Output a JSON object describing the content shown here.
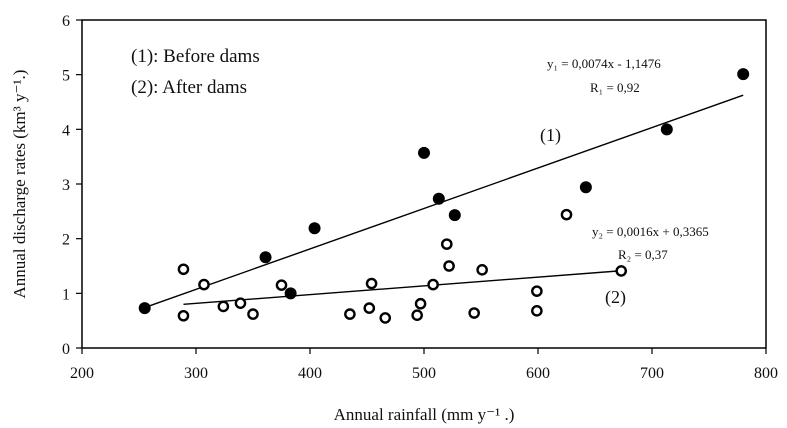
{
  "chart_data": {
    "type": "scatter",
    "xlabel": "Annual rainfall (mm y⁻¹ .)",
    "ylabel": "Annual discharge rates (km³ y⁻¹.)",
    "xlim": [
      200,
      800
    ],
    "ylim": [
      0,
      6
    ],
    "xticks": [
      200,
      300,
      400,
      500,
      600,
      700,
      800
    ],
    "yticks": [
      0,
      1,
      2,
      3,
      4,
      5,
      6
    ],
    "grid": false,
    "legend": {
      "position": "top-left",
      "entries": [
        "(1): Before dams",
        "(2): After dams"
      ]
    },
    "series": [
      {
        "name": "(1): Before dams",
        "marker": "filled-circle",
        "points": [
          [
            255,
            0.73
          ],
          [
            361,
            1.66
          ],
          [
            383,
            1.0
          ],
          [
            404,
            2.19
          ],
          [
            500,
            3.57
          ],
          [
            513,
            2.73
          ],
          [
            527,
            2.43
          ],
          [
            642,
            2.94
          ],
          [
            713,
            4.0
          ],
          [
            780,
            5.01
          ]
        ],
        "fit": {
          "x_range": [
            255,
            780
          ],
          "slope": 0.0074,
          "intercept": -1.1476,
          "equation": "y₁ = 0,0074x - 1,1476",
          "r_label": "R₁ = 0,92",
          "curve_label": "(1)"
        }
      },
      {
        "name": "(2): After dams",
        "marker": "open-circle",
        "points": [
          [
            289,
            1.44
          ],
          [
            289,
            0.59
          ],
          [
            307,
            1.16
          ],
          [
            324,
            0.76
          ],
          [
            339,
            0.82
          ],
          [
            350,
            0.62
          ],
          [
            375,
            1.15
          ],
          [
            435,
            0.62
          ],
          [
            452,
            0.73
          ],
          [
            454,
            1.18
          ],
          [
            466,
            0.55
          ],
          [
            494,
            0.6
          ],
          [
            497,
            0.81
          ],
          [
            508,
            1.16
          ],
          [
            520,
            1.9
          ],
          [
            522,
            1.5
          ],
          [
            544,
            0.64
          ],
          [
            551,
            1.43
          ],
          [
            599,
            1.04
          ],
          [
            599,
            0.68
          ],
          [
            625,
            2.44
          ],
          [
            673,
            1.41
          ]
        ],
        "fit": {
          "x_range": [
            289,
            673
          ],
          "slope": 0.0016,
          "intercept": 0.3365,
          "equation": "y₂ = 0,0016x + 0,3365",
          "r_label": "R₂ = 0,37",
          "curve_label": "(2)"
        }
      }
    ]
  }
}
